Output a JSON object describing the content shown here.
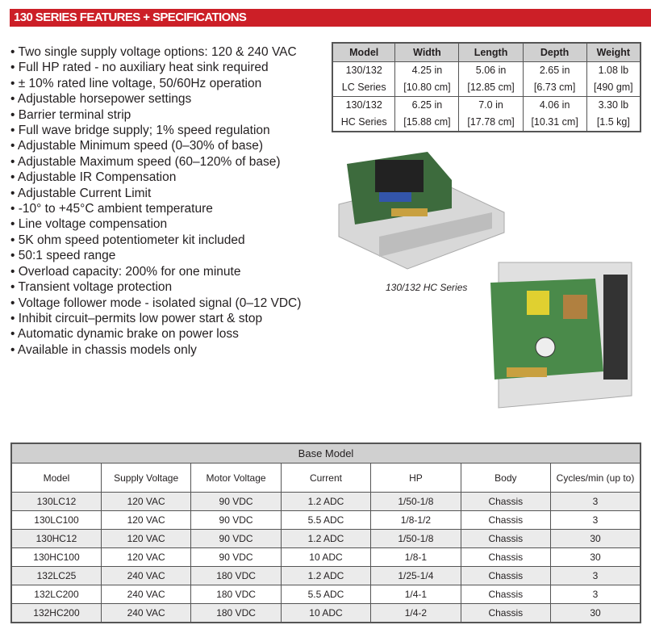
{
  "header": {
    "title": "130 SERIES FEATURES + SPECIFICATIONS",
    "color": "#cc1f27"
  },
  "features": [
    "Two single supply  voltage options: 120 & 240 VAC",
    "Full HP rated - no auxiliary heat sink required",
    "± 10% rated line voltage, 50/60Hz operation",
    "Adjustable horsepower settings",
    "Barrier terminal strip",
    "Full wave bridge supply; 1% speed regulation",
    "Adjustable Minimum speed (0–30% of base)",
    "Adjustable Maximum speed (60–120% of base)",
    "Adjustable IR Compensation",
    "Adjustable Current Limit",
    "-10° to +45°C ambient temperature",
    "Line voltage compensation",
    "5K ohm speed potentiometer kit included",
    "50:1 speed range",
    "Overload capacity: 200% for one minute",
    "Transient voltage protection",
    "Voltage follower mode - isolated signal (0–12 VDC)",
    "Inhibit circuit–permits low power start & stop",
    "Automatic dynamic brake on power loss",
    "Available in chassis models only"
  ],
  "spec_table": {
    "headers": [
      "Model",
      "Width",
      "Length",
      "Depth",
      "Weight"
    ],
    "rows": [
      [
        "130/132",
        "4.25 in",
        "5.06 in",
        "2.65 in",
        "1.08 lb"
      ],
      [
        "LC Series",
        "[10.80 cm]",
        "[12.85 cm]",
        "[6.73 cm]",
        "[490 gm]"
      ],
      [
        "130/132",
        "6.25 in",
        "7.0 in",
        "4.06 in",
        "3.30 lb"
      ],
      [
        "HC Series",
        "[15.88 cm]",
        "[17.78 cm]",
        "[10.31 cm]",
        "[1.5 kg]"
      ]
    ]
  },
  "caption": "130/132 HC Series",
  "base_table": {
    "title": "Base Model",
    "headers": [
      "Model",
      "Supply Voltage",
      "Motor Voltage",
      "Current",
      "HP",
      "Body",
      "Cycles/min (up to)"
    ],
    "rows": [
      [
        "130LC12",
        "120 VAC",
        "90 VDC",
        "1.2 ADC",
        "1/50-1/8",
        "Chassis",
        "3"
      ],
      [
        "130LC100",
        "120 VAC",
        "90 VDC",
        "5.5 ADC",
        "1/8-1/2",
        "Chassis",
        "3"
      ],
      [
        "130HC12",
        "120 VAC",
        "90 VDC",
        "1.2 ADC",
        "1/50-1/8",
        "Chassis",
        "30"
      ],
      [
        "130HC100",
        "120 VAC",
        "90 VDC",
        "10 ADC",
        "1/8-1",
        "Chassis",
        "30"
      ],
      [
        "132LC25",
        "240 VAC",
        "180 VDC",
        "1.2 ADC",
        "1/25-1/4",
        "Chassis",
        "3"
      ],
      [
        "132LC200",
        "240 VAC",
        "180 VDC",
        "5.5 ADC",
        "1/4-1",
        "Chassis",
        "3"
      ],
      [
        "132HC200",
        "240 VAC",
        "180 VDC",
        "10 ADC",
        "1/4-2",
        "Chassis",
        "30"
      ]
    ]
  }
}
